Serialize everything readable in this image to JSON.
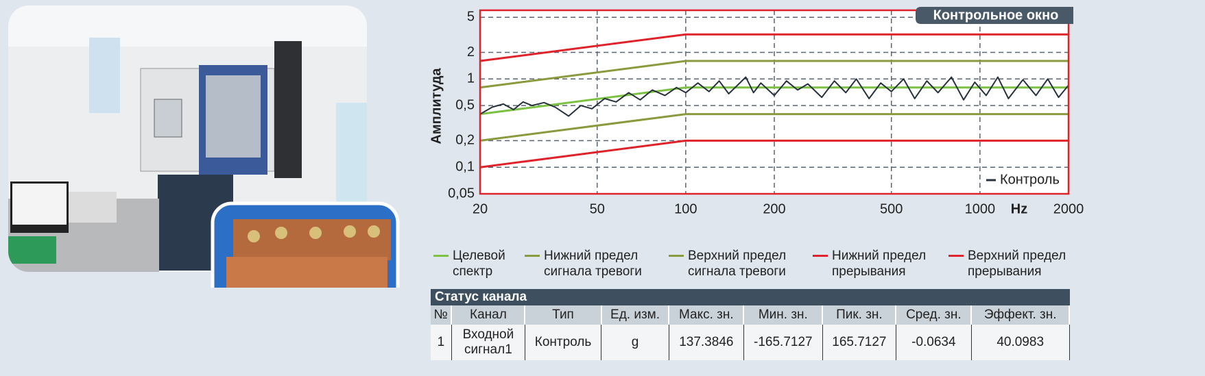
{
  "chart_data": {
    "type": "line",
    "y_label": "Амплитуда",
    "x_label": "Hz",
    "annotation": "Контрольное окно",
    "log_x": true,
    "log_y": true,
    "grid": true,
    "xlim": [
      20,
      2000
    ],
    "ylim": [
      0.05,
      6
    ],
    "xticks": [
      20,
      50,
      100,
      200,
      500,
      1000,
      2000
    ],
    "yticks": [
      {
        "value": 0.05,
        "label": "0,05"
      },
      {
        "value": 0.1,
        "label": "0,1"
      },
      {
        "value": 0.2,
        "label": "0,2"
      },
      {
        "value": 0.5,
        "label": "0,5"
      },
      1,
      2,
      5
    ],
    "series": [
      {
        "name": "Целевой спектр",
        "color": "#7cc242",
        "x": [
          20,
          100,
          2000
        ],
        "values": [
          0.4,
          0.8,
          0.8
        ]
      },
      {
        "name": "Нижний предел сигнала тревоги",
        "color": "#8a9a3c",
        "x": [
          20,
          100,
          2000
        ],
        "values": [
          0.2,
          0.4,
          0.4
        ]
      },
      {
        "name": "Верхний предел сигнала тревоги",
        "color": "#8a9a3c",
        "x": [
          20,
          100,
          2000
        ],
        "values": [
          0.8,
          1.6,
          1.6
        ]
      },
      {
        "name": "Нижний предел прерывания",
        "color": "#e0222a",
        "x": [
          20,
          100,
          2000
        ],
        "values": [
          0.1,
          0.2,
          0.2
        ]
      },
      {
        "name": "Верхний предел прерывания",
        "color": "#e0222a",
        "x": [
          20,
          100,
          2000
        ],
        "values": [
          1.6,
          3.2,
          3.2
        ]
      },
      {
        "name": "Контроль",
        "color": "#27323c",
        "x": [
          20,
          22,
          24,
          26,
          28,
          30,
          33,
          36,
          40,
          44,
          48,
          53,
          58,
          64,
          70,
          77,
          85,
          93,
          100,
          110,
          120,
          130,
          140,
          150,
          160,
          170,
          180,
          200,
          220,
          240,
          260,
          290,
          320,
          350,
          380,
          420,
          460,
          500,
          550,
          600,
          660,
          720,
          800,
          880,
          960,
          1050,
          1150,
          1250,
          1400,
          1550,
          1700,
          1850,
          2000
        ],
        "values": [
          0.4,
          0.48,
          0.52,
          0.45,
          0.55,
          0.5,
          0.54,
          0.48,
          0.38,
          0.5,
          0.46,
          0.6,
          0.55,
          0.7,
          0.58,
          0.75,
          0.65,
          0.8,
          0.7,
          0.9,
          0.72,
          0.95,
          0.68,
          0.85,
          1.05,
          0.7,
          0.9,
          0.65,
          0.95,
          0.75,
          0.88,
          0.62,
          0.95,
          0.7,
          1.0,
          0.6,
          0.9,
          0.72,
          1.0,
          0.6,
          0.95,
          0.7,
          1.05,
          0.58,
          0.92,
          0.65,
          1.05,
          0.6,
          0.98,
          0.65,
          1.0,
          0.62,
          0.85
        ]
      }
    ]
  },
  "table": {
    "title": "Статус канала",
    "header": [
      "№",
      "Канал",
      "Тип",
      "Ед. изм.",
      "Макс. зн.",
      "Мин. зн.",
      "Пик. зн.",
      "Сред. зн.",
      "Эффект. зн."
    ],
    "rows": [
      [
        "1",
        "Входной сигнал1",
        "Контроль",
        "g",
        "137.3846",
        "-165.7127",
        "165.7127",
        "-0.0634",
        "40.0983"
      ]
    ]
  }
}
